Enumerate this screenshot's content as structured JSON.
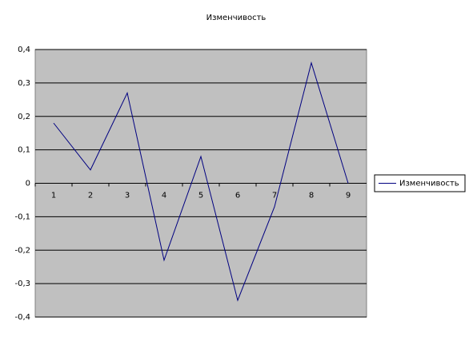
{
  "chart_data": {
    "type": "line",
    "title": "Изменчивость",
    "categories": [
      "1",
      "2",
      "3",
      "4",
      "5",
      "6",
      "7",
      "8",
      "9"
    ],
    "series": [
      {
        "name": "Изменчивость",
        "color": "#000080",
        "values": [
          0.18,
          0.04,
          0.27,
          -0.23,
          0.08,
          -0.35,
          -0.07,
          0.36,
          0
        ]
      }
    ],
    "ylim": [
      -0.4,
      0.4
    ],
    "yticks": [
      {
        "value": -0.4,
        "label": "-0,4"
      },
      {
        "value": -0.3,
        "label": "-0,3"
      },
      {
        "value": -0.2,
        "label": "-0,2"
      },
      {
        "value": -0.1,
        "label": "-0,1"
      },
      0,
      {
        "value": 0.1,
        "label": "0,1"
      },
      {
        "value": 0.2,
        "label": "0,2"
      },
      {
        "value": 0.3,
        "label": "0,3"
      },
      {
        "value": 0.4,
        "label": "0,4"
      }
    ],
    "grid": true,
    "legend": "right",
    "plot_background": "#c0c0c0"
  }
}
